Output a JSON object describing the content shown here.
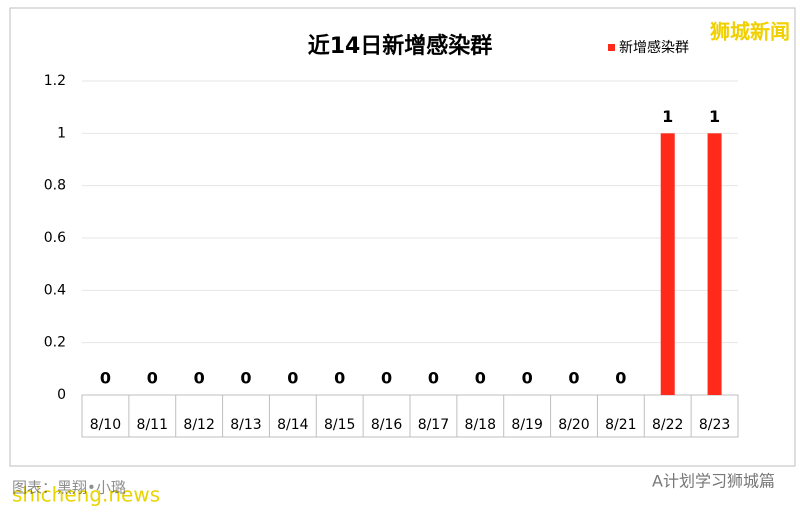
{
  "chart_data": {
    "type": "bar",
    "title": "近14日新增感染群",
    "categories": [
      "8/10",
      "8/11",
      "8/12",
      "8/13",
      "8/14",
      "8/15",
      "8/16",
      "8/17",
      "8/18",
      "8/19",
      "8/20",
      "8/21",
      "8/22",
      "8/23"
    ],
    "series": [
      {
        "name": "新增感染群",
        "color": "#ff2a1a",
        "values": [
          0,
          0,
          0,
          0,
          0,
          0,
          0,
          0,
          0,
          0,
          0,
          0,
          1,
          1
        ]
      }
    ],
    "ylim": [
      0,
      1.2
    ],
    "yticks": [
      0,
      0.2,
      0.4,
      0.6,
      0.8,
      1,
      1.2
    ],
    "grid": true,
    "legend": "top-right"
  },
  "watermarks": {
    "top_right": "狮城新闻",
    "bottom_left": "shicheng.news",
    "credit": "图表：黑翔•小璐",
    "bottom_right": "A计划学习狮城篇"
  }
}
